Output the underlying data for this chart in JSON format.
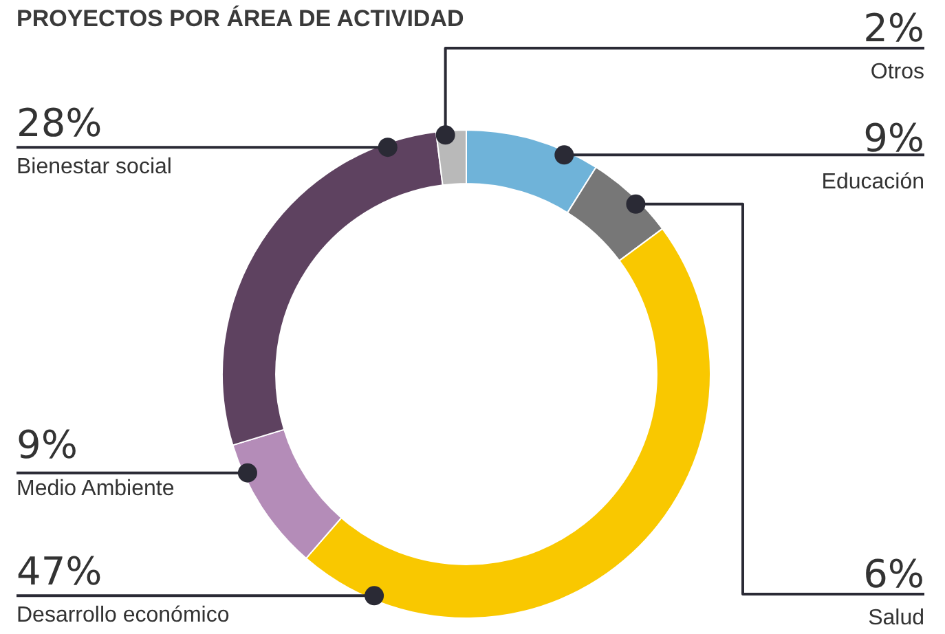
{
  "chart_data": {
    "type": "donut",
    "title": "PROYECTOS POR ÁREA DE ACTIVIDAD",
    "categories": [
      "Educación",
      "Salud",
      "Desarrollo económico",
      "Medio Ambiente",
      "Bienestar social",
      "Otros"
    ],
    "values": [
      9,
      6,
      47,
      9,
      28,
      2
    ],
    "colors": [
      "#6fb3d9",
      "#777777",
      "#f9c800",
      "#b48cb8",
      "#5e4260",
      "#b9b9b9"
    ],
    "value_labels": [
      "9%",
      "6%",
      "47%",
      "9%",
      "28%",
      "2%"
    ],
    "legend": false
  }
}
